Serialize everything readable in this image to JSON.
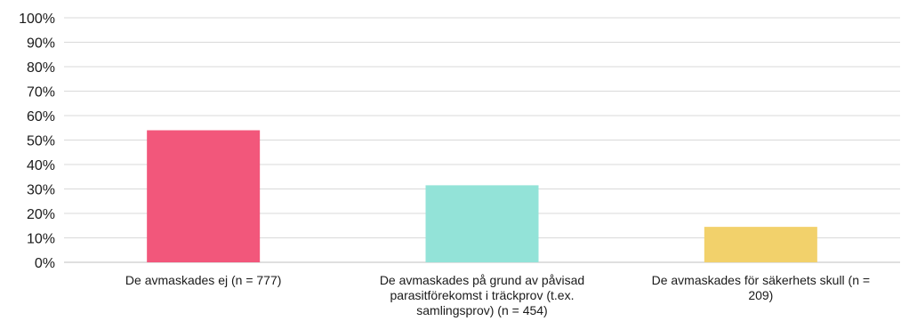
{
  "chart_data": {
    "type": "bar",
    "title": "",
    "xlabel": "",
    "ylabel": "",
    "ylim": [
      0,
      100
    ],
    "y_ticks": [
      "0%",
      "10%",
      "20%",
      "30%",
      "40%",
      "50%",
      "60%",
      "70%",
      "80%",
      "90%",
      "100%"
    ],
    "grid": true,
    "legend": "none",
    "categories": [
      [
        "De avmaskades ej (n = 777)"
      ],
      [
        "De avmaskades på grund av påvisad",
        "parasitförekomst i träckprov (t.ex.",
        "samlingsprov) (n = 454)"
      ],
      [
        "De avmaskades för säkerhets skull (n =",
        "209)"
      ]
    ],
    "values": [
      54,
      31.5,
      14.5
    ],
    "colors": [
      "#f2577b",
      "#93e3d8",
      "#f2d16b"
    ]
  }
}
